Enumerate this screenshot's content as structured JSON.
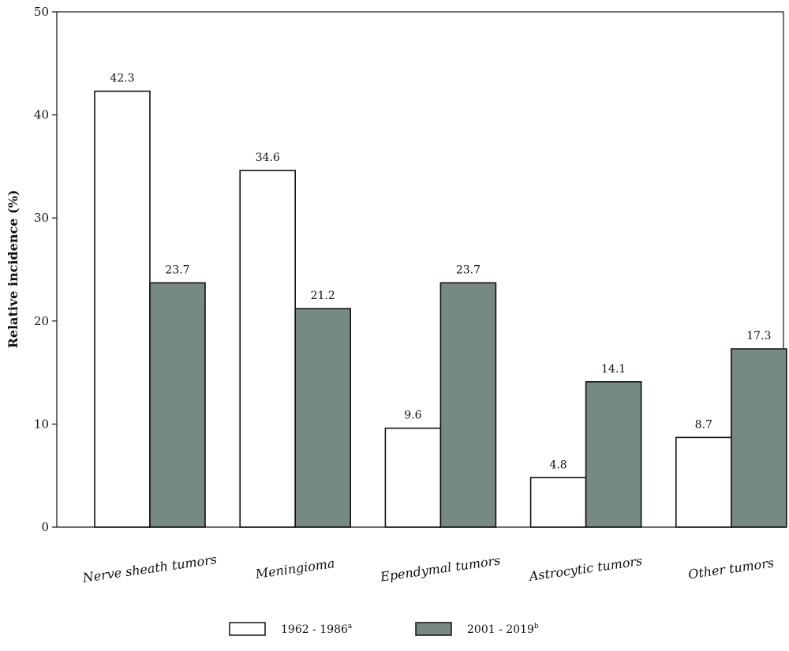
{
  "chart_data": {
    "type": "bar",
    "title": "",
    "xlabel": "",
    "ylabel": "Relative incidence (%)",
    "ylim": [
      0,
      50
    ],
    "yticks": [
      0,
      10,
      20,
      30,
      40,
      50
    ],
    "grid": false,
    "legend_position": "bottom",
    "categories": [
      "Nerve sheath tumors",
      "Meningioma",
      "Ependymal tumors",
      "Astrocytic tumors",
      "Other tumors"
    ],
    "series": [
      {
        "name": "1962 - 1986",
        "superscript": "a",
        "color": "#ffffff",
        "values": [
          42.3,
          34.6,
          9.6,
          4.8,
          8.7
        ]
      },
      {
        "name": "2001 - 2019",
        "superscript": "b",
        "color": "#778985",
        "values": [
          23.7,
          21.2,
          23.7,
          14.1,
          17.3
        ]
      }
    ]
  }
}
